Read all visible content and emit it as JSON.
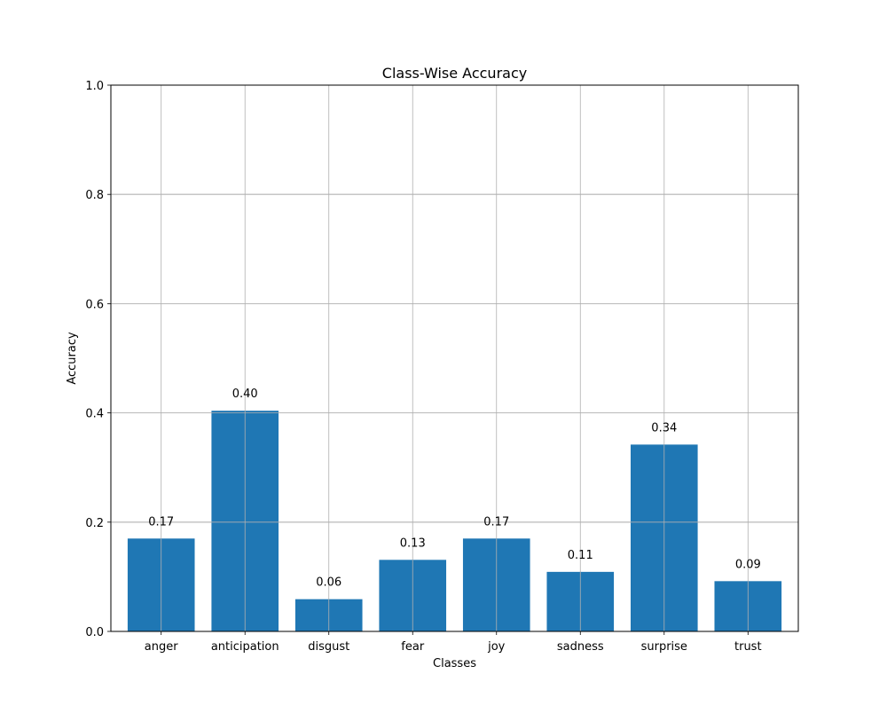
{
  "chart_data": {
    "type": "bar",
    "title": "Class-Wise Accuracy",
    "xlabel": "Classes",
    "ylabel": "Accuracy",
    "categories": [
      "anger",
      "anticipation",
      "disgust",
      "fear",
      "joy",
      "sadness",
      "surprise",
      "trust"
    ],
    "values": [
      0.17,
      0.404,
      0.059,
      0.131,
      0.17,
      0.109,
      0.342,
      0.092
    ],
    "data_labels": [
      "0.17",
      "0.40",
      "0.06",
      "0.13",
      "0.17",
      "0.11",
      "0.34",
      "0.09"
    ],
    "ylim": [
      0,
      1.0
    ],
    "yticks": [
      0.0,
      0.2,
      0.4,
      0.6,
      0.8,
      1.0
    ],
    "ytick_labels": [
      "0.0",
      "0.2",
      "0.4",
      "0.6",
      "0.8",
      "1.0"
    ],
    "grid": true,
    "bar_color": "#1f77b4",
    "grid_color": "#b0b0b0"
  }
}
